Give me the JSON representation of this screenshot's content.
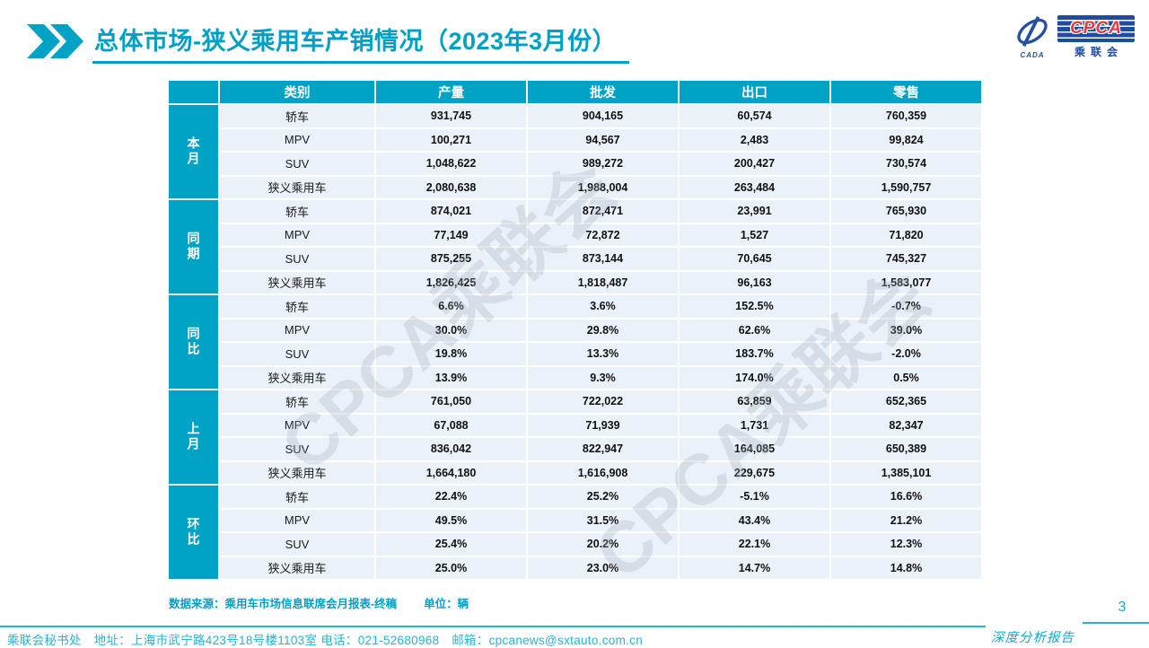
{
  "title": "总体市场-狭义乘用车产销情况（2023年3月份）",
  "logo": {
    "cada_label": "CADA",
    "cpca_label": "CPCA",
    "cn_label": "乘联会"
  },
  "table": {
    "headers": [
      "类别",
      "产量",
      "批发",
      "出口",
      "零售"
    ],
    "groups": [
      {
        "label": "本月",
        "rows": [
          {
            "category": "轿车",
            "values": [
              "931,745",
              "904,165",
              "60,574",
              "760,359"
            ]
          },
          {
            "category": "MPV",
            "values": [
              "100,271",
              "94,567",
              "2,483",
              "99,824"
            ]
          },
          {
            "category": "SUV",
            "values": [
              "1,048,622",
              "989,272",
              "200,427",
              "730,574"
            ]
          },
          {
            "category": "狭义乘用车",
            "values": [
              "2,080,638",
              "1,988,004",
              "263,484",
              "1,590,757"
            ]
          }
        ]
      },
      {
        "label": "同期",
        "rows": [
          {
            "category": "轿车",
            "values": [
              "874,021",
              "872,471",
              "23,991",
              "765,930"
            ]
          },
          {
            "category": "MPV",
            "values": [
              "77,149",
              "72,872",
              "1,527",
              "71,820"
            ]
          },
          {
            "category": "SUV",
            "values": [
              "875,255",
              "873,144",
              "70,645",
              "745,327"
            ]
          },
          {
            "category": "狭义乘用车",
            "values": [
              "1,826,425",
              "1,818,487",
              "96,163",
              "1,583,077"
            ]
          }
        ]
      },
      {
        "label": "同比",
        "rows": [
          {
            "category": "轿车",
            "values": [
              "6.6%",
              "3.6%",
              "152.5%",
              "-0.7%"
            ]
          },
          {
            "category": "MPV",
            "values": [
              "30.0%",
              "29.8%",
              "62.6%",
              "39.0%"
            ]
          },
          {
            "category": "SUV",
            "values": [
              "19.8%",
              "13.3%",
              "183.7%",
              "-2.0%"
            ]
          },
          {
            "category": "狭义乘用车",
            "values": [
              "13.9%",
              "9.3%",
              "174.0%",
              "0.5%"
            ]
          }
        ]
      },
      {
        "label": "上月",
        "rows": [
          {
            "category": "轿车",
            "values": [
              "761,050",
              "722,022",
              "63,859",
              "652,365"
            ]
          },
          {
            "category": "MPV",
            "values": [
              "67,088",
              "71,939",
              "1,731",
              "82,347"
            ]
          },
          {
            "category": "SUV",
            "values": [
              "836,042",
              "822,947",
              "164,085",
              "650,389"
            ]
          },
          {
            "category": "狭义乘用车",
            "values": [
              "1,664,180",
              "1,616,908",
              "229,675",
              "1,385,101"
            ]
          }
        ]
      },
      {
        "label": "环比",
        "rows": [
          {
            "category": "轿车",
            "values": [
              "22.4%",
              "25.2%",
              "-5.1%",
              "16.6%"
            ]
          },
          {
            "category": "MPV",
            "values": [
              "49.5%",
              "31.5%",
              "43.4%",
              "21.2%"
            ]
          },
          {
            "category": "SUV",
            "values": [
              "25.4%",
              "20.2%",
              "22.1%",
              "12.3%"
            ]
          },
          {
            "category": "狭义乘用车",
            "values": [
              "25.0%",
              "23.0%",
              "14.7%",
              "14.8%"
            ]
          }
        ]
      }
    ]
  },
  "watermark_text": "CPCA乘联会",
  "notes": {
    "source": "数据来源：乘用车市场信息联席会月报表-终稿",
    "unit": "单位：辆"
  },
  "footer": {
    "contact": "乘联会秘书处　地址：上海市武宁路423号18号楼1103室 电话：021-52680968　邮箱：cpcanews@sxtauto.com.cn",
    "report_label": "深度分析报告",
    "page_number": "3"
  },
  "colors": {
    "teal": "#00a3c6",
    "row_background": "#eaf1f9",
    "logo_navy": "#1e4ca1",
    "logo_red": "#e23a3f"
  }
}
